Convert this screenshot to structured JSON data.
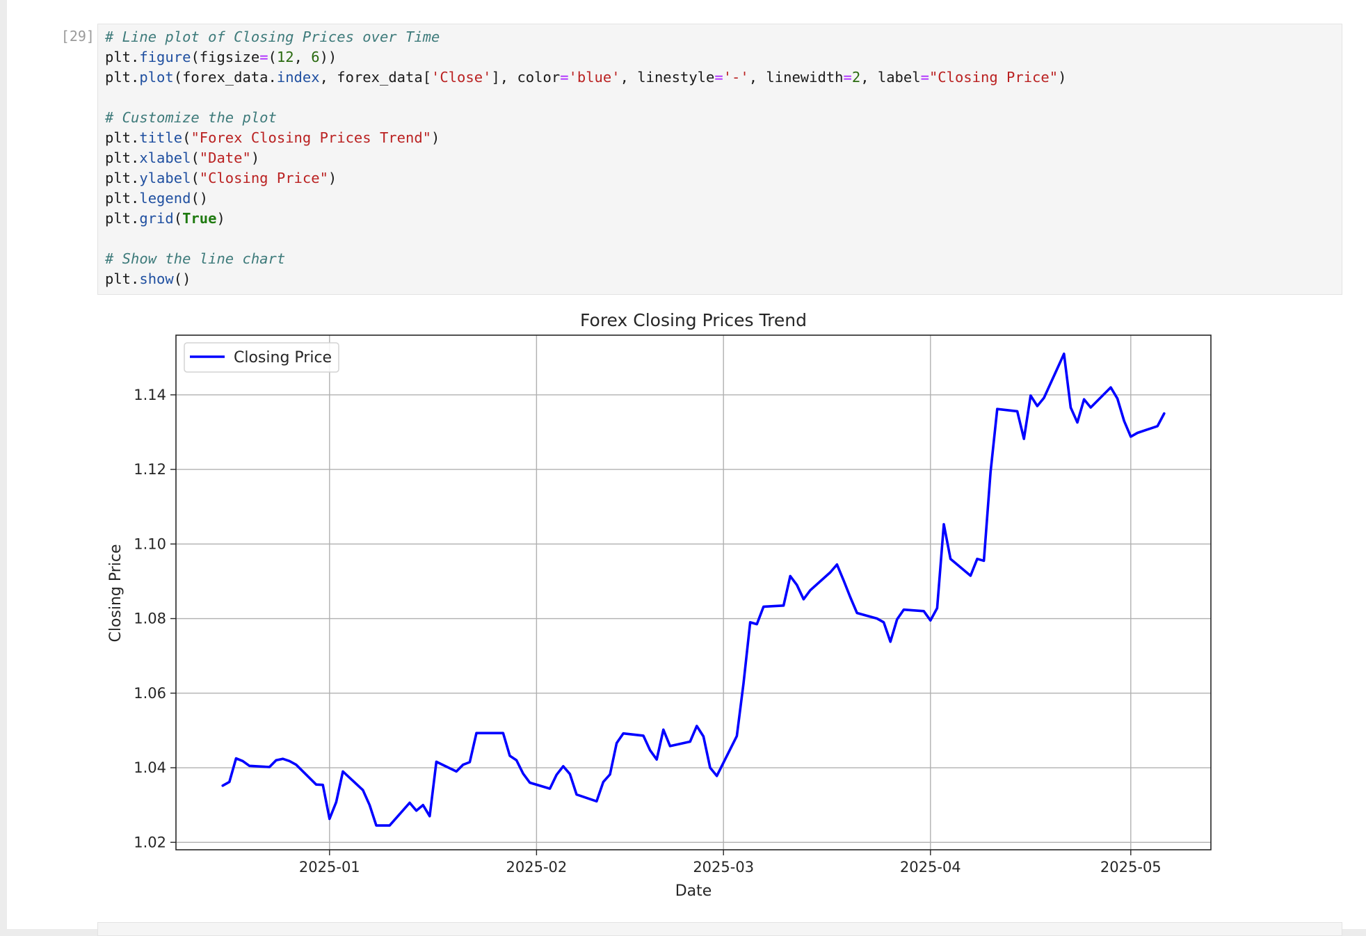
{
  "cell": {
    "prompt": "[29]:",
    "code_lines": [
      [
        [
          "c",
          "# Line plot of Closing Prices over Time"
        ]
      ],
      [
        [
          "",
          "plt."
        ],
        [
          "a",
          "figure"
        ],
        [
          "",
          "(figsize"
        ],
        [
          "o",
          "="
        ],
        [
          "",
          "("
        ],
        [
          "n",
          "12"
        ],
        [
          "",
          ", "
        ],
        [
          "n",
          "6"
        ],
        [
          "",
          "))"
        ]
      ],
      [
        [
          "",
          "plt."
        ],
        [
          "a",
          "plot"
        ],
        [
          "",
          "(forex_data."
        ],
        [
          "a",
          "index"
        ],
        [
          "",
          ", forex_data"
        ],
        [
          "",
          "["
        ],
        [
          "s",
          "'Close'"
        ],
        [
          "",
          "], color"
        ],
        [
          "o",
          "="
        ],
        [
          "s",
          "'blue'"
        ],
        [
          "",
          ", linestyle"
        ],
        [
          "o",
          "="
        ],
        [
          "s",
          "'-'"
        ],
        [
          "",
          ", linewidth"
        ],
        [
          "o",
          "="
        ],
        [
          "n",
          "2"
        ],
        [
          "",
          ", label"
        ],
        [
          "o",
          "="
        ],
        [
          "s",
          "\"Closing Price\""
        ],
        [
          "",
          ")"
        ]
      ],
      [
        [
          "",
          ""
        ]
      ],
      [
        [
          "c",
          "# Customize the plot"
        ]
      ],
      [
        [
          "",
          "plt."
        ],
        [
          "a",
          "title"
        ],
        [
          "",
          "("
        ],
        [
          "s",
          "\"Forex Closing Prices Trend\""
        ],
        [
          "",
          ")"
        ]
      ],
      [
        [
          "",
          "plt."
        ],
        [
          "a",
          "xlabel"
        ],
        [
          "",
          "("
        ],
        [
          "s",
          "\"Date\""
        ],
        [
          "",
          ")"
        ]
      ],
      [
        [
          "",
          "plt."
        ],
        [
          "a",
          "ylabel"
        ],
        [
          "",
          "("
        ],
        [
          "s",
          "\"Closing Price\""
        ],
        [
          "",
          ")"
        ]
      ],
      [
        [
          "",
          "plt."
        ],
        [
          "a",
          "legend"
        ],
        [
          "",
          "()"
        ]
      ],
      [
        [
          "",
          "plt."
        ],
        [
          "a",
          "grid"
        ],
        [
          "",
          "("
        ],
        [
          "k",
          "True"
        ],
        [
          "",
          ")"
        ]
      ],
      [
        [
          "",
          ""
        ]
      ],
      [
        [
          "c",
          "# Show the line chart"
        ]
      ],
      [
        [
          "",
          "plt."
        ],
        [
          "a",
          "show"
        ],
        [
          "",
          "()"
        ]
      ]
    ]
  },
  "chart_data": {
    "type": "line",
    "title": "Forex Closing Prices Trend",
    "xlabel": "Date",
    "ylabel": "Closing Price",
    "legend_position": "top-left",
    "grid": true,
    "line_color": "#0000ff",
    "xlim": [
      "2024-12-09",
      "2025-05-13"
    ],
    "ylim": [
      1.018,
      1.156
    ],
    "x_ticks": [
      "2025-01",
      "2025-02",
      "2025-03",
      "2025-04",
      "2025-05"
    ],
    "y_ticks": [
      "1.02",
      "1.04",
      "1.06",
      "1.08",
      "1.10",
      "1.12",
      "1.14"
    ],
    "series": [
      {
        "name": "Closing Price",
        "x": [
          "2024-12-16",
          "2024-12-17",
          "2024-12-18",
          "2024-12-19",
          "2024-12-20",
          "2024-12-23",
          "2024-12-24",
          "2024-12-25",
          "2024-12-26",
          "2024-12-27",
          "2024-12-30",
          "2024-12-31",
          "2025-01-01",
          "2025-01-02",
          "2025-01-03",
          "2025-01-06",
          "2025-01-07",
          "2025-01-08",
          "2025-01-09",
          "2025-01-10",
          "2025-01-13",
          "2025-01-14",
          "2025-01-15",
          "2025-01-16",
          "2025-01-17",
          "2025-01-20",
          "2025-01-21",
          "2025-01-22",
          "2025-01-23",
          "2025-01-24",
          "2025-01-27",
          "2025-01-28",
          "2025-01-29",
          "2025-01-30",
          "2025-01-31",
          "2025-02-03",
          "2025-02-04",
          "2025-02-05",
          "2025-02-06",
          "2025-02-07",
          "2025-02-10",
          "2025-02-11",
          "2025-02-12",
          "2025-02-13",
          "2025-02-14",
          "2025-02-17",
          "2025-02-18",
          "2025-02-19",
          "2025-02-20",
          "2025-02-21",
          "2025-02-24",
          "2025-02-25",
          "2025-02-26",
          "2025-02-27",
          "2025-02-28",
          "2025-03-03",
          "2025-03-04",
          "2025-03-05",
          "2025-03-06",
          "2025-03-07",
          "2025-03-10",
          "2025-03-11",
          "2025-03-12",
          "2025-03-13",
          "2025-03-14",
          "2025-03-17",
          "2025-03-18",
          "2025-03-19",
          "2025-03-20",
          "2025-03-21",
          "2025-03-24",
          "2025-03-25",
          "2025-03-26",
          "2025-03-27",
          "2025-03-28",
          "2025-03-31",
          "2025-04-01",
          "2025-04-02",
          "2025-04-03",
          "2025-04-04",
          "2025-04-07",
          "2025-04-08",
          "2025-04-09",
          "2025-04-10",
          "2025-04-11",
          "2025-04-14",
          "2025-04-15",
          "2025-04-16",
          "2025-04-17",
          "2025-04-18",
          "2025-04-21",
          "2025-04-22",
          "2025-04-23",
          "2025-04-24",
          "2025-04-25",
          "2025-04-28",
          "2025-04-29",
          "2025-04-30",
          "2025-05-01",
          "2025-05-02",
          "2025-05-05",
          "2025-05-06"
        ],
        "y": [
          1.0352,
          1.0362,
          1.0425,
          1.0418,
          1.0405,
          1.0402,
          1.042,
          1.0424,
          1.0418,
          1.0408,
          1.0355,
          1.0354,
          1.0263,
          1.0308,
          1.039,
          1.034,
          1.03,
          1.0245,
          1.0245,
          1.0245,
          1.0306,
          1.0285,
          1.03,
          1.027,
          1.0416,
          1.039,
          1.0408,
          1.0415,
          1.0493,
          1.0493,
          1.0493,
          1.0432,
          1.042,
          1.0384,
          1.036,
          1.0344,
          1.0381,
          1.0404,
          1.0383,
          1.0328,
          1.031,
          1.0362,
          1.0382,
          1.0466,
          1.0492,
          1.0486,
          1.0447,
          1.0422,
          1.0502,
          1.0458,
          1.047,
          1.0512,
          1.0484,
          1.04,
          1.0378,
          1.0485,
          1.0626,
          1.079,
          1.0785,
          1.0832,
          1.0835,
          1.0914,
          1.089,
          1.0852,
          1.0876,
          1.0924,
          1.0945,
          1.0902,
          1.0857,
          1.0815,
          1.08,
          1.079,
          1.0738,
          1.0798,
          1.0824,
          1.082,
          1.0795,
          1.0828,
          1.1053,
          1.096,
          1.0915,
          1.096,
          1.0955,
          1.1193,
          1.1362,
          1.1356,
          1.1282,
          1.1398,
          1.137,
          1.1392,
          1.151,
          1.1366,
          1.1326,
          1.1388,
          1.1366,
          1.142,
          1.139,
          1.133,
          1.1288,
          1.1298,
          1.1316,
          1.135
        ]
      }
    ]
  }
}
